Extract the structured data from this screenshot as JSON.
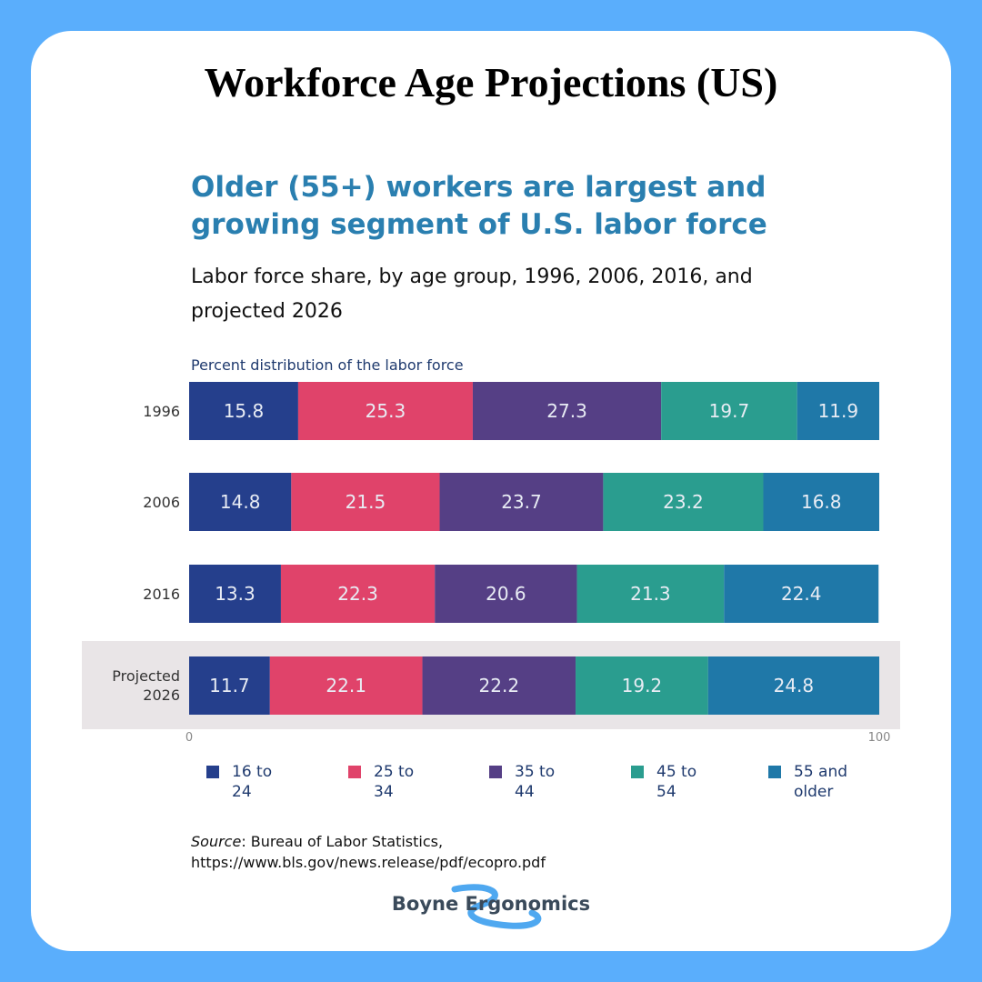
{
  "page_title": "Workforce Age Projections (US)",
  "chart_data": {
    "type": "stacked-bar-horizontal",
    "title": "Older (55+) workers are largest and growing segment of U.S. labor force",
    "subtitle": "Labor force share, by age group, 1996, 2006, 2016, and projected 2026",
    "axis_label": "Percent distribution of the labor force",
    "categories": [
      "1996",
      "2006",
      "2016",
      "Projected 2026"
    ],
    "highlight_category": 3,
    "series": [
      {
        "name": "16 to 24",
        "color": "#253f8c",
        "values": [
          15.8,
          14.8,
          13.3,
          11.7
        ]
      },
      {
        "name": "25 to 34",
        "color": "#e0436a",
        "values": [
          25.3,
          21.5,
          22.3,
          22.1
        ]
      },
      {
        "name": "35 to 44",
        "color": "#553f85",
        "values": [
          27.3,
          23.7,
          20.6,
          22.2
        ]
      },
      {
        "name": "45 to 54",
        "color": "#2a9d8f",
        "values": [
          19.7,
          23.2,
          21.3,
          19.2
        ]
      },
      {
        "name": "55 and older",
        "color": "#1f78a8",
        "values": [
          11.9,
          16.8,
          22.4,
          24.8
        ]
      }
    ],
    "xlim": [
      0,
      100
    ],
    "xticks": [
      0,
      100
    ]
  },
  "source": {
    "label": "Source",
    "text": ": Bureau of Labor Statistics, https://www.bls.gov/news.release/pdf/ecopro.pdf"
  },
  "logo": "Boyne Ergonomics"
}
